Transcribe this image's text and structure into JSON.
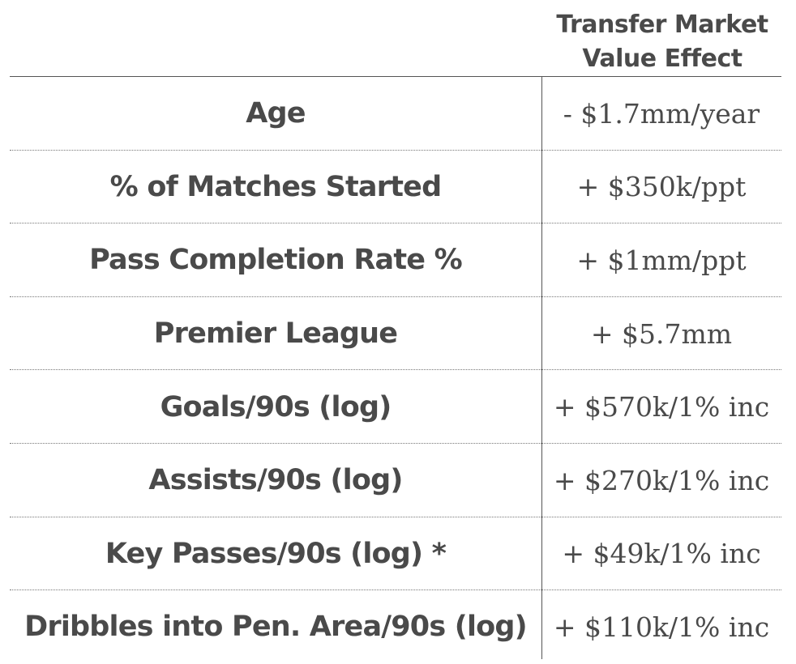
{
  "header": {
    "line1": "Transfer Market",
    "line2": "Value Effect"
  },
  "rows": [
    {
      "label": "Age",
      "value": "- $1.7mm/year"
    },
    {
      "label": "% of Matches Started",
      "value": "+ $350k/ppt"
    },
    {
      "label": "Pass Completion Rate %",
      "value": "+ $1mm/ppt"
    },
    {
      "label": "Premier League",
      "value": "+ $5.7mm"
    },
    {
      "label": "Goals/90s (log)",
      "value": "+ $570k/1% inc"
    },
    {
      "label": "Assists/90s (log)",
      "value": "+ $270k/1% inc"
    },
    {
      "label": "Key Passes/90s (log) *",
      "value": "+ $49k/1% inc"
    },
    {
      "label": "Dribbles into Pen. Area/90s (log)",
      "value": "+ $110k/1% inc"
    }
  ]
}
